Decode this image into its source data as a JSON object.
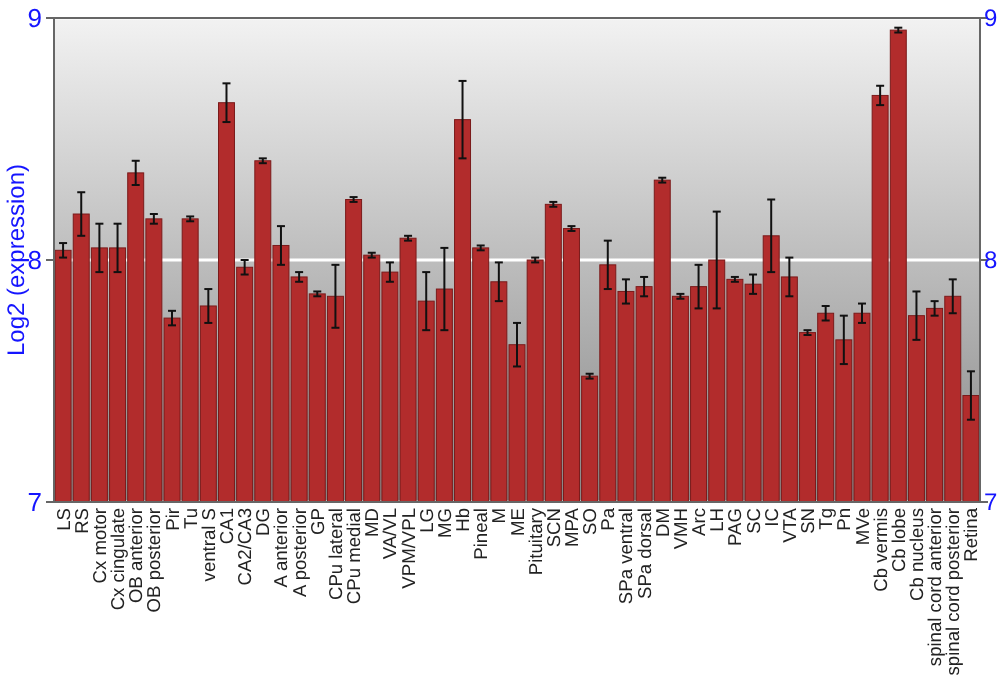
{
  "chart_data": {
    "type": "bar",
    "ylabel": "Log2 (expression)",
    "categories": [
      "LS",
      "RS",
      "Cx motor",
      "Cx cingulate",
      "OB anterior",
      "OB posterior",
      "Pir",
      "Tu",
      "ventral S",
      "CA1",
      "CA2/CA3",
      "DG",
      "A anterior",
      "A posterior",
      "GP",
      "CPu lateral",
      "CPu medial",
      "MD",
      "VA/VL",
      "VPM/VPL",
      "LG",
      "MG",
      "Hb",
      "Pineal",
      "M",
      "ME",
      "Pituitary",
      "SCN",
      "MPA",
      "SO",
      "Pa",
      "SPa ventral",
      "SPa dorsal",
      "DM",
      "VMH",
      "Arc",
      "LH",
      "PAG",
      "SC",
      "IC",
      "VTA",
      "SN",
      "Tg",
      "Pn",
      "MVe",
      "Cb vermis",
      "Cb lobe",
      "Cb nucleus",
      "spinal cord anterior",
      "spinal cord posterior",
      "Retina"
    ],
    "values": [
      8.04,
      8.19,
      8.05,
      8.05,
      8.36,
      8.17,
      7.76,
      8.17,
      7.81,
      8.65,
      7.97,
      8.41,
      8.06,
      7.93,
      7.86,
      7.85,
      8.25,
      8.02,
      7.95,
      8.09,
      7.83,
      7.88,
      8.58,
      8.05,
      7.91,
      7.65,
      8.0,
      8.23,
      8.13,
      7.52,
      7.98,
      7.87,
      7.89,
      8.33,
      7.85,
      7.89,
      8.0,
      7.92,
      7.9,
      8.1,
      7.93,
      7.7,
      7.78,
      7.67,
      7.78,
      8.68,
      8.95,
      7.77,
      7.8,
      7.85,
      7.44
    ],
    "errors": [
      0.03,
      0.09,
      0.1,
      0.1,
      0.05,
      0.02,
      0.03,
      0.01,
      0.07,
      0.08,
      0.03,
      0.01,
      0.08,
      0.02,
      0.01,
      0.13,
      0.01,
      0.01,
      0.04,
      0.01,
      0.12,
      0.17,
      0.16,
      0.01,
      0.08,
      0.09,
      0.01,
      0.01,
      0.01,
      0.01,
      0.1,
      0.05,
      0.04,
      0.01,
      0.01,
      0.09,
      0.2,
      0.01,
      0.04,
      0.15,
      0.08,
      0.01,
      0.03,
      0.1,
      0.04,
      0.04,
      0.01,
      0.1,
      0.03,
      0.07,
      0.1
    ],
    "color": "#b22c2c",
    "ylim": [
      7,
      9
    ],
    "yticks": [
      7,
      8,
      9
    ],
    "y2lim": [
      7,
      9
    ],
    "y2ticks": [
      7,
      8,
      9
    ],
    "grid": "y"
  }
}
